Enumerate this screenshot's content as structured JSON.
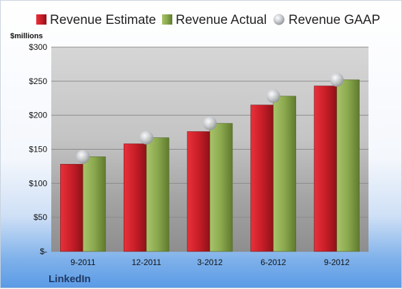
{
  "brand": "LinkedIn",
  "unit_label": "$millions",
  "colors": {
    "estimate": "#c8202a",
    "actual": "#8aa84e",
    "gaap": "#b9bcc2"
  },
  "chart_data": {
    "type": "bar",
    "categories": [
      "9-2011",
      "12-2011",
      "3-2012",
      "6-2012",
      "9-2012"
    ],
    "series": [
      {
        "name": "Revenue Estimate",
        "type": "bar",
        "values": [
          128,
          158,
          176,
          215,
          243
        ]
      },
      {
        "name": "Revenue Actual",
        "type": "bar",
        "values": [
          139,
          167,
          188,
          228,
          252
        ]
      },
      {
        "name": "Revenue GAAP",
        "type": "scatter",
        "values": [
          139,
          167,
          188,
          228,
          252
        ]
      }
    ],
    "ylim": [
      0,
      300
    ],
    "yticks": [
      0,
      50,
      100,
      150,
      200,
      250,
      300
    ],
    "ytick_labels": [
      "$-",
      "$50",
      "$100",
      "$150",
      "$200",
      "$250",
      "$300"
    ],
    "legend_position": "top",
    "grid": true
  }
}
